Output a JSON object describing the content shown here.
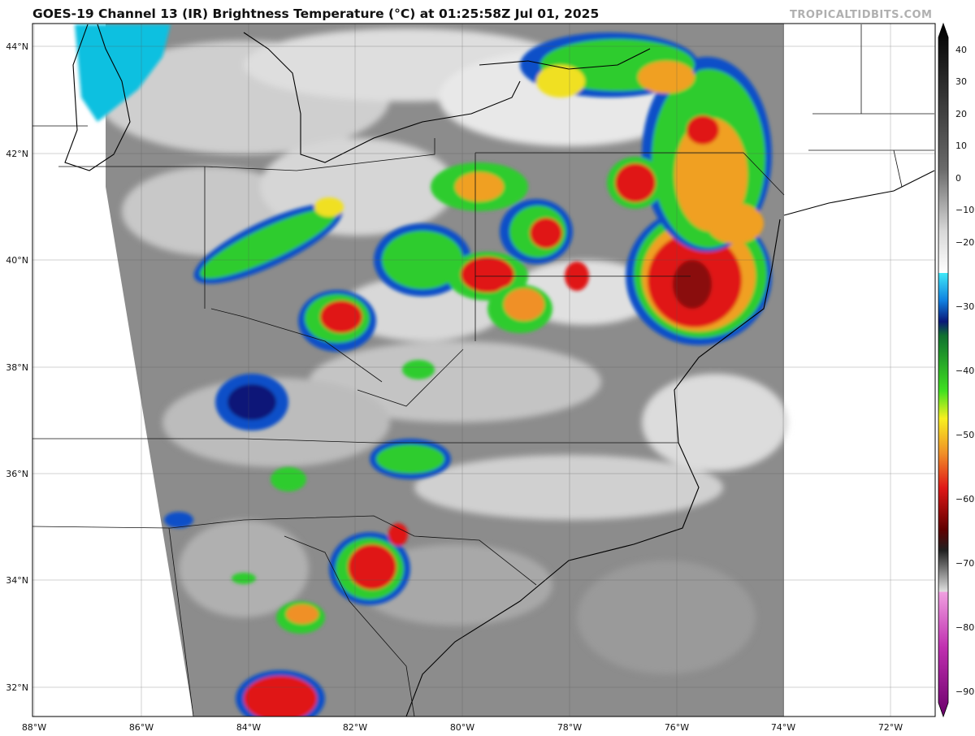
{
  "title": "GOES-19 Channel 13 (IR) Brightness Temperature (°C) at 01:25:58Z Jul 01, 2025",
  "credit": "TROPICALTIDBITS.COM",
  "lon_labels": [
    "88°W",
    "86°W",
    "84°W",
    "82°W",
    "80°W",
    "78°W",
    "76°W",
    "74°W",
    "72°W"
  ],
  "lat_labels": [
    "44°N",
    "42°N",
    "40°N",
    "38°N",
    "36°N",
    "34°N",
    "32°N"
  ],
  "colorbar": {
    "ticks": [
      "40",
      "30",
      "20",
      "10",
      "0",
      "−10",
      "−20",
      "−30",
      "−40",
      "−50",
      "−60",
      "−70",
      "−80",
      "−90"
    ],
    "range": [
      -95,
      45
    ]
  },
  "colors": {
    "ir_gray_warm": "#7a7a7a",
    "ir_gray_mid": "#b8b8b8",
    "ir_white": "#f2f2f2",
    "cyan": "#12c8e8",
    "blue": "#1050c8",
    "navy": "#0a1878",
    "green": "#2ecc2e",
    "yellow": "#f0e020",
    "orange": "#f09028",
    "red": "#e01818",
    "darkred": "#7a0808",
    "pink": "#e060c8",
    "purple": "#8a0a9a"
  }
}
